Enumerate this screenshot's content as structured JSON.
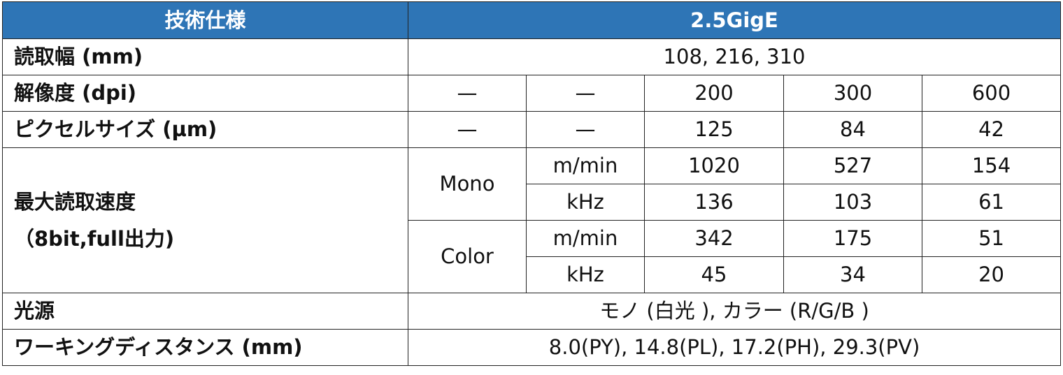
{
  "header": {
    "col_spec": "技術仕様",
    "col_model": "2.5GigE"
  },
  "colors": {
    "header_bg": "#2E75B6",
    "header_text": "#FFFFFF"
  },
  "rows": {
    "read_width": {
      "label": "読取幅 (mm)",
      "value": "108, 216, 310"
    },
    "resolution": {
      "label": "解像度 (dpi)",
      "values": [
        "—",
        "—",
        "200",
        "300",
        "600"
      ]
    },
    "pixel_size": {
      "label": "ピクセルサイズ (µm)",
      "values": [
        "—",
        "—",
        "125",
        "84",
        "42"
      ]
    },
    "max_speed": {
      "label_line1": "最大読取速度",
      "label_line2": "（8bit,full出力)",
      "mono": {
        "label": "Mono",
        "mmin": {
          "unit": "m/min",
          "values": [
            "1020",
            "527",
            "154"
          ]
        },
        "khz": {
          "unit": "kHz",
          "values": [
            "136",
            "103",
            "61"
          ]
        }
      },
      "color": {
        "label": "Color",
        "mmin": {
          "unit": "m/min",
          "values": [
            "342",
            "175",
            "51"
          ]
        },
        "khz": {
          "unit": "kHz",
          "values": [
            "45",
            "34",
            "20"
          ]
        }
      }
    },
    "light_source": {
      "label": "光源",
      "value": "モノ (白光 ), カラー (R/G/B )"
    },
    "working_distance": {
      "label": "ワーキングディスタンス (mm)",
      "value": "8.0(PY), 14.8(PL), 17.2(PH), 29.3(PV)"
    }
  }
}
